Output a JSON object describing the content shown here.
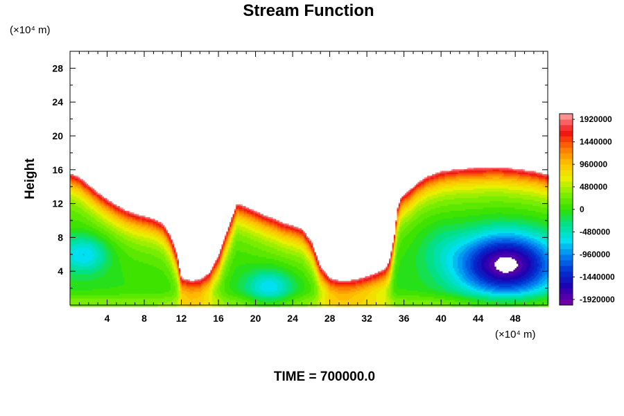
{
  "chart_data": {
    "type": "heatmap",
    "subtype": "filled-contour",
    "title": "Stream Function",
    "ylabel": "Height",
    "x_unit": "(×10⁴ m)",
    "y_unit": "(×10⁴ m)",
    "footer": "TIME = 700000.0",
    "xlim": [
      0,
      51.5
    ],
    "ylim": [
      0,
      30
    ],
    "x_ticks": [
      4,
      8,
      12,
      16,
      20,
      24,
      28,
      32,
      36,
      40,
      44,
      48
    ],
    "y_ticks": [
      4,
      8,
      12,
      16,
      20,
      24,
      28
    ],
    "x_minor_step": 1,
    "y_minor_step": 2,
    "colorbar": {
      "min": -2040000,
      "max": 2040000,
      "step": 120000,
      "tick_values": [
        1920000,
        1440000,
        960000,
        480000,
        0,
        -480000,
        -960000,
        -1440000,
        -1920000
      ],
      "tick_labels": [
        "1920000",
        "1440000",
        "960000",
        "480000",
        "0",
        "-480000",
        "-960000",
        "-1440000",
        "-1920000"
      ],
      "colormap": [
        "#7000a8",
        "#2000b0",
        "#0030d0",
        "#0080f0",
        "#00e0f0",
        "#00e090",
        "#30e000",
        "#80ee00",
        "#e8f000",
        "#ffc000",
        "#ff7000",
        "#f01010",
        "#ff9090"
      ]
    },
    "contour_interface": [
      [
        0,
        15.6
      ],
      [
        1,
        15.1
      ],
      [
        2,
        14.2
      ],
      [
        3,
        13.3
      ],
      [
        4,
        12.5
      ],
      [
        5,
        11.8
      ],
      [
        6,
        11.2
      ],
      [
        7,
        10.8
      ],
      [
        8,
        10.5
      ],
      [
        9,
        10.2
      ],
      [
        10,
        9.6
      ],
      [
        10.8,
        8.2
      ],
      [
        11.5,
        6
      ],
      [
        12,
        3.2
      ],
      [
        13,
        2.9
      ],
      [
        14,
        3
      ],
      [
        15,
        3.8
      ],
      [
        16,
        5.8
      ],
      [
        17,
        9
      ],
      [
        18,
        12
      ],
      [
        19,
        11.6
      ],
      [
        20,
        11.1
      ],
      [
        21,
        10.6
      ],
      [
        22,
        10.2
      ],
      [
        23,
        9.7
      ],
      [
        24,
        9.4
      ],
      [
        25,
        9
      ],
      [
        26,
        7.5
      ],
      [
        27,
        4.5
      ],
      [
        28,
        3.2
      ],
      [
        29,
        2.9
      ],
      [
        30,
        2.9
      ],
      [
        31,
        3.1
      ],
      [
        32,
        3.4
      ],
      [
        33,
        3.8
      ],
      [
        34,
        4.3
      ],
      [
        34.5,
        5.5
      ],
      [
        35,
        8.5
      ],
      [
        35.3,
        11.5
      ],
      [
        35.7,
        12.8
      ],
      [
        36.5,
        13.5
      ],
      [
        37.5,
        14.5
      ],
      [
        38.5,
        15.2
      ],
      [
        40,
        15.8
      ],
      [
        42,
        16.1
      ],
      [
        44,
        16.2
      ],
      [
        46,
        16.3
      ],
      [
        48,
        16.1
      ],
      [
        50,
        15.8
      ],
      [
        51.5,
        15.4
      ]
    ],
    "extrema": [
      {
        "type": "min",
        "x": 47,
        "y": 4.8,
        "value": -1920000
      },
      {
        "type": "min",
        "x": 1.5,
        "y": 6,
        "value": -720000
      },
      {
        "type": "min",
        "x": 21.5,
        "y": 2,
        "value": -720000
      }
    ]
  }
}
